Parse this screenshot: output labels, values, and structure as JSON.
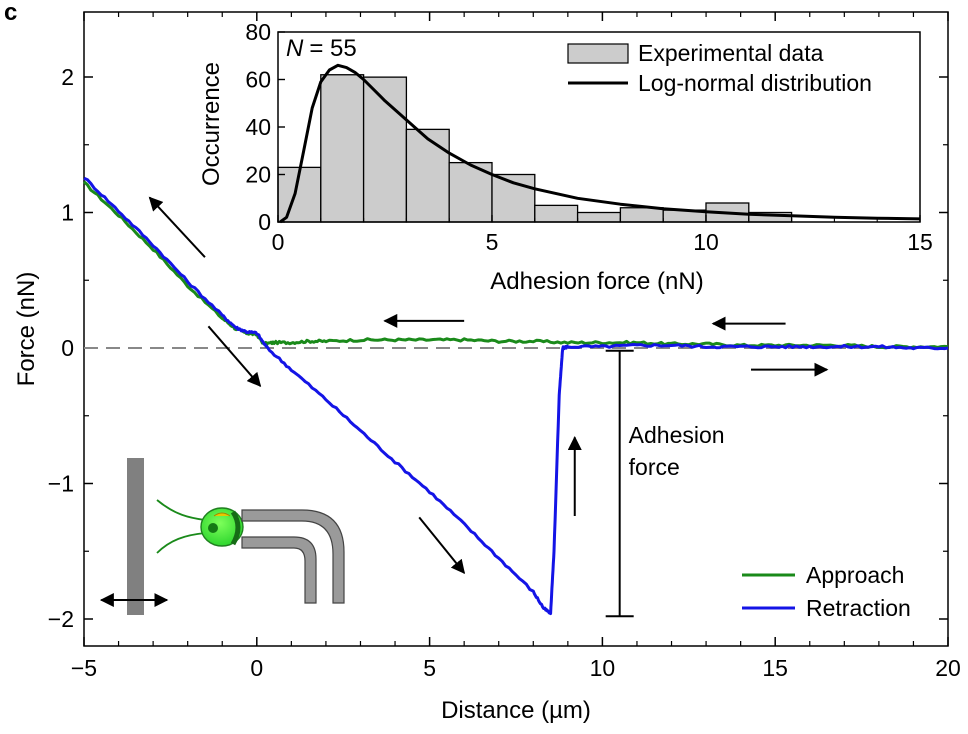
{
  "panel_label": "c",
  "chart_data": [
    {
      "id": "main",
      "type": "line",
      "xlabel": "Distance (µm)",
      "ylabel": "Force (nN)",
      "xlim": [
        -5,
        20
      ],
      "ylim": [
        -2.2,
        2.5
      ],
      "xticks": [
        -5,
        0,
        5,
        10,
        15,
        20
      ],
      "xtick_labels": [
        "−5",
        "0",
        "5",
        "10",
        "15",
        "20"
      ],
      "yticks": [
        -2,
        -1,
        0,
        1,
        2
      ],
      "ytick_labels": [
        "−2",
        "−1",
        "0",
        "1",
        "2"
      ],
      "baseline": 0,
      "legend_position": "bottom-right",
      "series": [
        {
          "name": "Approach",
          "color": "#1a8a1a",
          "x": [
            -5,
            -4,
            -3,
            -2,
            -1,
            -0.6,
            -0.3,
            0,
            0.2,
            0.5,
            1,
            1.5,
            2,
            3,
            4,
            5,
            6,
            7,
            8,
            9,
            10,
            11,
            12,
            13,
            14,
            15,
            16,
            17,
            18,
            19,
            20
          ],
          "y": [
            1.22,
            0.98,
            0.73,
            0.46,
            0.22,
            0.14,
            0.11,
            0.1,
            0.03,
            0.04,
            0.04,
            0.05,
            0.05,
            0.06,
            0.06,
            0.06,
            0.06,
            0.05,
            0.05,
            0.04,
            0.04,
            0.04,
            0.03,
            0.03,
            0.02,
            0.02,
            0.02,
            0.02,
            0.01,
            0.01,
            0.01
          ]
        },
        {
          "name": "Retraction",
          "color": "#1414e6",
          "x": [
            -5,
            -4,
            -3,
            -2,
            -1,
            -0.6,
            -0.3,
            0,
            0.3,
            1,
            2,
            3,
            4,
            5,
            6,
            7,
            8,
            8.3,
            8.5,
            8.6,
            8.75,
            8.85,
            9,
            10,
            11,
            12,
            13,
            14,
            15,
            16,
            17,
            18,
            19,
            20
          ],
          "y": [
            1.26,
            1.01,
            0.76,
            0.49,
            0.24,
            0.15,
            0.12,
            0.11,
            0.0,
            -0.16,
            -0.38,
            -0.61,
            -0.84,
            -1.06,
            -1.3,
            -1.55,
            -1.8,
            -1.92,
            -1.96,
            -1.5,
            -0.35,
            0.0,
            0.01,
            0.01,
            0.02,
            0.02,
            0.01,
            0.01,
            0.01,
            0.01,
            0.01,
            0.01,
            0.0,
            0.0
          ]
        }
      ],
      "annotation": {
        "label_line1": "Adhesion",
        "label_line2": "force",
        "x": 10.5,
        "y_top": -0.02,
        "y_bottom": -1.98
      },
      "direction_arrows": [
        {
          "from": [
            -1.5,
            0.67
          ],
          "to": [
            -3.1,
            1.11
          ]
        },
        {
          "from": [
            -1.4,
            0.16
          ],
          "to": [
            0.1,
            -0.28
          ]
        },
        {
          "from": [
            6.0,
            0.2
          ],
          "to": [
            3.7,
            0.2
          ]
        },
        {
          "from": [
            15.3,
            0.18
          ],
          "to": [
            13.2,
            0.18
          ]
        },
        {
          "from": [
            14.3,
            -0.16
          ],
          "to": [
            16.5,
            -0.16
          ]
        },
        {
          "from": [
            4.7,
            -1.25
          ],
          "to": [
            6.0,
            -1.66
          ]
        },
        {
          "from": [
            9.2,
            -1.24
          ],
          "to": [
            9.2,
            -0.66
          ]
        }
      ],
      "motion_arrow": {
        "from": [
          -4.5,
          -1.86
        ],
        "to": [
          -2.6,
          -1.86
        ]
      }
    },
    {
      "id": "inset",
      "type": "bar",
      "xlabel": "Adhesion force (nN)",
      "ylabel": "Occurrence",
      "annotation_n_label": "N",
      "annotation_n_value": "= 55",
      "xlim": [
        0,
        15
      ],
      "ylim": [
        0,
        80
      ],
      "xticks": [
        0,
        5,
        10,
        15
      ],
      "yticks": [
        0,
        20,
        40,
        60,
        80
      ],
      "bin_width": 1,
      "bin_starts": [
        0,
        1,
        2,
        3,
        4,
        5,
        6,
        7,
        8,
        9,
        10,
        11
      ],
      "values": [
        23,
        62,
        61,
        39,
        25,
        20,
        7,
        4,
        6,
        5,
        8,
        4
      ],
      "bar_color": "#cccccc",
      "legend_position": "top-right",
      "series": [
        {
          "name": "Experimental data",
          "type": "bar",
          "color": "#cccccc"
        },
        {
          "name": "Log-normal distribution",
          "type": "line",
          "color": "#000000",
          "x": [
            0.05,
            0.2,
            0.4,
            0.6,
            0.8,
            1.0,
            1.2,
            1.4,
            1.6,
            1.8,
            2.0,
            2.5,
            3.0,
            3.5,
            4.0,
            4.5,
            5.0,
            5.5,
            6.0,
            7.0,
            8.0,
            9.0,
            10.0,
            11.0,
            12.0,
            13.0,
            14.0,
            15.0
          ],
          "y": [
            0,
            2,
            12,
            30,
            48,
            59,
            64,
            66,
            65,
            63,
            60,
            51,
            43,
            35,
            29,
            24,
            20,
            16.5,
            14,
            10,
            7.5,
            5.6,
            4.3,
            3.3,
            2.6,
            2.0,
            1.6,
            1.3
          ]
        }
      ]
    }
  ]
}
